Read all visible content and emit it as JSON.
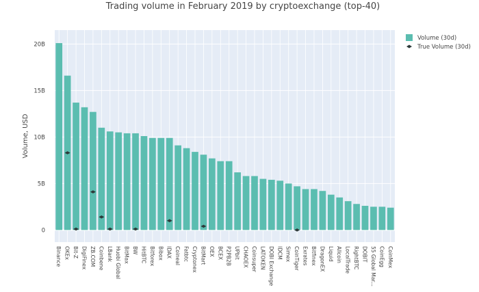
{
  "chart_data": {
    "type": "bar",
    "title": "Trading volume in February 2019 by cryptoexchange (top-40)",
    "xlabel": "",
    "ylabel": "Volume, USD",
    "ylim": [
      -1.3,
      21.5
    ],
    "y_tick_values": [
      0,
      5,
      10,
      15,
      20
    ],
    "y_tick_labels": [
      "0",
      "5B",
      "10B",
      "15B",
      "20B"
    ],
    "grid": true,
    "legend_position": "top-right",
    "categories": [
      "Binance",
      "OKEx",
      "Bit-Z",
      "DigiFinex",
      "ZB.COM",
      "Coinbene",
      "LBank",
      "Huobi Global",
      "BitMax",
      "BW",
      "HitBTC",
      "Bitforex",
      "Bibox",
      "IDAX",
      "Coineal",
      "Fatbtc",
      "Cryptonex",
      "BitMart",
      "OEX",
      "BCEX",
      "P2PB2B",
      "UPbit",
      "CHAOEX",
      "Coinsuper",
      "LATOKEN",
      "DOBI Exchange",
      "IDCM",
      "Simex",
      "CoinTiger",
      "Exrates",
      "Bitfinex",
      "DragonEX",
      "Liquid",
      "Allcoin",
      "LocalTrade",
      "RightBTC",
      "DOBIT",
      "55 Global Mar...",
      "CoinEgg",
      "CoinMex"
    ],
    "series": [
      {
        "name": "Volume (30d)",
        "kind": "bar",
        "color": "#5bbdb0",
        "values": [
          20.1,
          16.6,
          13.7,
          13.2,
          12.7,
          11.0,
          10.6,
          10.5,
          10.4,
          10.4,
          10.1,
          9.9,
          9.9,
          9.9,
          9.1,
          8.8,
          8.4,
          8.1,
          7.7,
          7.4,
          7.4,
          6.2,
          5.8,
          5.8,
          5.5,
          5.4,
          5.3,
          5.0,
          4.7,
          4.4,
          4.4,
          4.2,
          3.8,
          3.5,
          3.1,
          2.8,
          2.6,
          2.5,
          2.5,
          2.4
        ]
      },
      {
        "name": "True Volume (30d)",
        "kind": "marker",
        "color": "#2d3a3a",
        "values": [
          null,
          8.3,
          0.1,
          null,
          4.1,
          1.4,
          0.1,
          null,
          null,
          0.1,
          null,
          null,
          null,
          1.0,
          null,
          null,
          null,
          0.4,
          null,
          null,
          null,
          null,
          null,
          null,
          null,
          null,
          null,
          null,
          0.0,
          null,
          null,
          null,
          null,
          null,
          null,
          null,
          null,
          null,
          null,
          null
        ]
      }
    ]
  }
}
